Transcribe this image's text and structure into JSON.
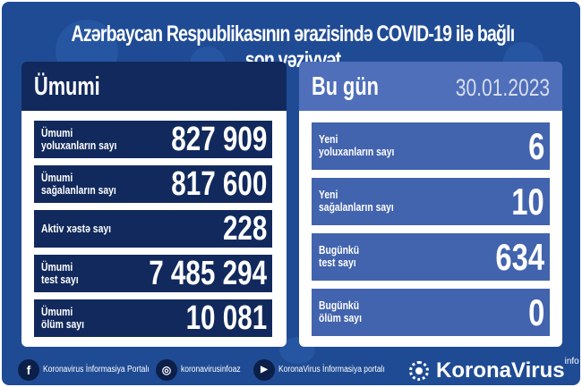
{
  "title": "Azərbaycan Respublikasının ərazisində COVID-19 ilə bağlı son vəziyyət",
  "total": {
    "header": "Ümumi",
    "rows": [
      {
        "label1": "Ümumi",
        "label2": "yoluxanların sayı",
        "value": "827 909"
      },
      {
        "label1": "Ümumi",
        "label2": "sağalanların sayı",
        "value": "817 600"
      },
      {
        "label1": "Aktiv xəstə sayı",
        "label2": "",
        "value": "228"
      },
      {
        "label1": "Ümumi",
        "label2": "test sayı",
        "value": "7 485 294"
      },
      {
        "label1": "Ümumi",
        "label2": "ölüm sayı",
        "value": "10 081"
      }
    ]
  },
  "today": {
    "header": "Bu gün",
    "date": "30.01.2023",
    "rows": [
      {
        "label1": "Yeni",
        "label2": "yoluxanların sayı",
        "value": "6"
      },
      {
        "label1": "Yeni",
        "label2": "sağalanların sayı",
        "value": "10"
      },
      {
        "label1": "Bugünkü",
        "label2": "test sayı",
        "value": "634"
      },
      {
        "label1": "Bugünkü",
        "label2": "ölüm sayı",
        "value": "0"
      }
    ]
  },
  "footer": {
    "facebook": "Koronavirus İnformasiya Portalı",
    "instagram": "koronavirusinfoaz",
    "youtube": "KoronaVirus İnformasiya portalı",
    "brand": "KoronaVirus",
    "brand_sup": "info"
  },
  "colors": {
    "background": "#1f4b94",
    "total_rows": "#11295c",
    "today_rows": "#4263ad"
  }
}
